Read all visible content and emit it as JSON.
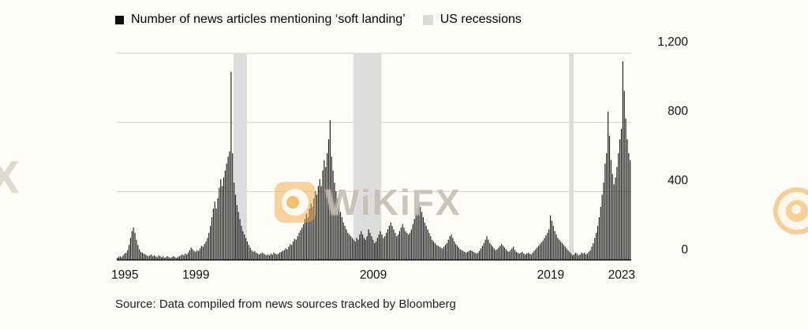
{
  "legend": {
    "series_label": "Number of news articles mentioning ‘soft landing’",
    "recessions_label": "US recessions",
    "series_color": "#0d0d0d",
    "recession_color": "#d9d9d9"
  },
  "source": "Source: Data compiled from news sources tracked by Bloomberg",
  "watermark": {
    "text": "WiKiFX",
    "edge_text": "X"
  },
  "chart_data": {
    "type": "bar",
    "title": "Number of news articles mentioning ‘soft landing’",
    "frequency": "monthly",
    "start": "1994-08",
    "ylim": [
      0,
      1200
    ],
    "y_ticks": [
      0,
      400,
      800,
      1200
    ],
    "y_tick_labels": [
      "0",
      "400",
      "800",
      "1,200"
    ],
    "x_tick_years": [
      1995,
      1999,
      2009,
      2019,
      2023
    ],
    "x_tick_labels": [
      "1995",
      "1999",
      "2009",
      "2019",
      "2023"
    ],
    "grid": true,
    "legend_position": "top-left",
    "bar_color": "#1b1b1b",
    "recession_color": "#dcdcdc",
    "grid_color": "#d8d6d1",
    "axis_color": "#1a1a1a",
    "recessions": [
      {
        "start": "2001-03",
        "end": "2001-11"
      },
      {
        "start": "2007-12",
        "end": "2009-06"
      },
      {
        "start": "2020-02",
        "end": "2020-04"
      }
    ],
    "values_by_year": {
      "1994": [
        15,
        20,
        25,
        20,
        30
      ],
      "1995": [
        40,
        45,
        60,
        90,
        130,
        170,
        190,
        160,
        120,
        90,
        65,
        50
      ],
      "1996": [
        45,
        40,
        35,
        30,
        25,
        30,
        35,
        25,
        30,
        25,
        20,
        30
      ],
      "1997": [
        25,
        20,
        25,
        15,
        20,
        25,
        20,
        15,
        20,
        25,
        20,
        15
      ],
      "1998": [
        20,
        25,
        30,
        35,
        30,
        40,
        35,
        45,
        60,
        75,
        65,
        55
      ],
      "1999": [
        50,
        60,
        55,
        70,
        85,
        80,
        95,
        110,
        130,
        160,
        200,
        250
      ],
      "2000": [
        300,
        340,
        300,
        360,
        420,
        470,
        430,
        480,
        520,
        560,
        600,
        630
      ],
      "2001": [
        1090,
        620,
        450,
        380,
        320,
        280,
        240,
        200,
        170,
        150,
        130,
        110
      ],
      "2002": [
        90,
        75,
        60,
        50,
        55,
        45,
        40,
        35,
        40,
        45,
        40,
        35
      ],
      "2003": [
        30,
        35,
        30,
        40,
        35,
        45,
        40,
        35,
        40,
        45,
        50,
        55
      ],
      "2004": [
        60,
        70,
        65,
        80,
        95,
        90,
        110,
        125,
        120,
        140,
        160,
        175
      ],
      "2005": [
        190,
        210,
        240,
        270,
        250,
        300,
        330,
        310,
        360,
        400,
        380,
        430
      ],
      "2006": [
        470,
        430,
        520,
        580,
        540,
        620,
        700,
        810,
        600,
        520,
        450,
        400
      ],
      "2007": [
        360,
        320,
        280,
        250,
        220,
        200,
        180,
        160,
        150,
        140,
        130,
        120
      ],
      "2008": [
        110,
        130,
        120,
        150,
        170,
        150,
        130,
        120,
        140,
        180,
        160,
        140
      ],
      "2009": [
        120,
        100,
        110,
        130,
        150,
        170,
        150,
        130,
        140,
        160,
        180,
        200
      ],
      "2010": [
        220,
        200,
        180,
        160,
        140,
        150,
        170,
        190,
        210,
        190,
        170,
        160
      ],
      "2011": [
        150,
        160,
        180,
        210,
        240,
        270,
        300,
        330,
        310,
        280,
        250,
        220
      ],
      "2012": [
        200,
        180,
        160,
        140,
        120,
        110,
        100,
        90,
        85,
        80,
        75,
        70
      ],
      "2013": [
        80,
        90,
        100,
        120,
        140,
        150,
        130,
        110,
        95,
        85,
        75,
        65
      ],
      "2014": [
        60,
        55,
        50,
        45,
        50,
        55,
        60,
        55,
        50,
        45,
        40,
        45
      ],
      "2015": [
        55,
        70,
        85,
        100,
        120,
        140,
        120,
        100,
        90,
        80,
        70,
        60
      ],
      "2016": [
        65,
        75,
        85,
        95,
        85,
        75,
        65,
        55,
        50,
        60,
        70,
        80
      ],
      "2017": [
        60,
        50,
        45,
        40,
        45,
        50,
        40,
        35,
        40,
        45,
        40,
        35
      ],
      "2018": [
        45,
        55,
        65,
        75,
        85,
        95,
        105,
        115,
        130,
        145,
        160,
        180
      ],
      "2019": [
        260,
        230,
        200,
        170,
        150,
        130,
        120,
        110,
        100,
        90,
        80,
        70
      ],
      "2020": [
        60,
        50,
        40,
        30,
        35,
        45,
        40,
        30,
        35,
        45,
        40,
        45
      ],
      "2021": [
        35,
        40,
        50,
        60,
        80,
        100,
        130,
        160,
        200,
        250,
        310,
        380
      ],
      "2022": [
        450,
        560,
        620,
        860,
        720,
        580,
        500,
        440,
        480,
        540,
        620,
        700
      ],
      "2023": [
        760,
        1150,
        980,
        820,
        700,
        620,
        580
      ]
    }
  }
}
